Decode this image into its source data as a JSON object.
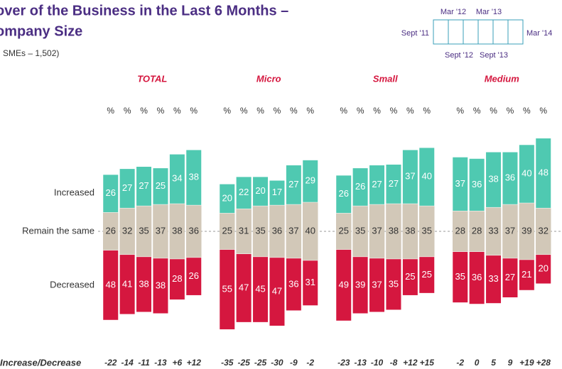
{
  "chart_data": {
    "type": "bar",
    "title": [
      "over of the Business in the Last 6 Months –",
      "ompany Size"
    ],
    "subtitle": "l SMEs – 1,502)",
    "timeline": {
      "top": [
        "Mar '12",
        "Mar '13"
      ],
      "left": "Sept '11",
      "right": "Mar '14",
      "bottom": [
        "Sept '12",
        "Sept '13"
      ]
    },
    "unit": "%",
    "row_labels": {
      "increased": "Increased",
      "same": "Remain the same",
      "decreased": "Decreased"
    },
    "colors": {
      "increased": "#4fc9b1",
      "same": "#d2c8b8",
      "decreased": "#d5173f"
    },
    "net_label": "Increase/Decrease",
    "groups": [
      {
        "name": "TOTAL",
        "increased": [
          26,
          27,
          27,
          25,
          34,
          38
        ],
        "same": [
          26,
          32,
          35,
          37,
          38,
          36
        ],
        "decreased": [
          48,
          41,
          38,
          38,
          28,
          26
        ],
        "net": [
          -22,
          -14,
          -11,
          -13,
          6,
          12
        ],
        "net_labels": [
          "-22",
          "-14",
          "-11",
          "-13",
          "+6",
          "+12"
        ]
      },
      {
        "name": "Micro",
        "increased": [
          20,
          22,
          20,
          17,
          27,
          29
        ],
        "same": [
          25,
          31,
          35,
          36,
          37,
          40
        ],
        "decreased": [
          55,
          47,
          45,
          47,
          36,
          31
        ],
        "net": [
          -35,
          -25,
          -25,
          -30,
          -9,
          -2
        ],
        "net_labels": [
          "-35",
          "-25",
          "-25",
          "-30",
          "-9",
          "-2"
        ]
      },
      {
        "name": "Small",
        "increased": [
          26,
          26,
          27,
          27,
          37,
          40
        ],
        "same": [
          25,
          35,
          37,
          38,
          38,
          35
        ],
        "decreased": [
          49,
          39,
          37,
          35,
          25,
          25
        ],
        "net": [
          -23,
          -13,
          -10,
          -8,
          12,
          15
        ],
        "net_labels": [
          "-23",
          "-13",
          "-10",
          "-8",
          "+12",
          "+15"
        ]
      },
      {
        "name": "Medium",
        "increased": [
          37,
          36,
          38,
          36,
          40,
          48
        ],
        "same": [
          28,
          28,
          33,
          37,
          39,
          32
        ],
        "decreased": [
          35,
          36,
          33,
          27,
          21,
          20
        ],
        "net": [
          -2,
          0,
          5,
          9,
          19,
          28
        ],
        "net_labels": [
          "-2",
          "0",
          "5",
          "9",
          "+19",
          "+28"
        ]
      }
    ]
  }
}
